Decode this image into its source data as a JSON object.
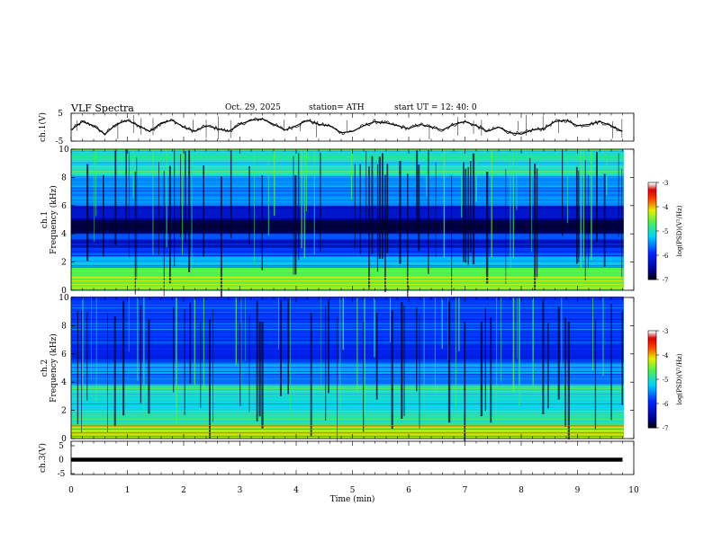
{
  "header": {
    "title": "VLF  Spectra",
    "date": "Oct. 29, 2025",
    "station": "station= ATH",
    "start_time": "start  UT  =   12: 40: 0"
  },
  "chart_data": [
    {
      "type": "line",
      "panel": "ch1-waveform",
      "ylabel": "ch.1(V)",
      "ylim": [
        -5,
        5
      ],
      "yticks": [
        5,
        -5
      ],
      "x_range": [
        0,
        9.8
      ],
      "x": [
        0,
        0.2,
        0.4,
        0.6,
        0.8,
        1.0,
        1.2,
        1.4,
        1.6,
        1.8,
        2.0,
        2.2,
        2.4,
        2.6,
        2.8,
        3.0,
        3.2,
        3.4,
        3.6,
        3.8,
        4.0,
        4.2,
        4.4,
        4.6,
        4.8,
        5.0,
        5.2,
        5.4,
        5.6,
        5.8,
        6.0,
        6.2,
        6.4,
        6.6,
        6.8,
        7.0,
        7.2,
        7.4,
        7.6,
        7.8,
        8.0,
        8.2,
        8.4,
        8.6,
        8.8,
        9.0,
        9.2,
        9.4,
        9.6,
        9.8
      ],
      "values": [
        -1,
        2,
        0.5,
        -2.5,
        1,
        2.5,
        0.5,
        -1.5,
        1.5,
        2.5,
        0,
        -1.5,
        0.5,
        -0.5,
        -1.5,
        1,
        2.5,
        3,
        1,
        -1,
        0.5,
        2.5,
        1,
        0.5,
        -2,
        -1.5,
        0.5,
        2,
        1.5,
        0.5,
        -0.5,
        1,
        0,
        -1,
        1,
        2,
        0.5,
        -1.5,
        0,
        -2,
        -2.5,
        -1,
        -0.5,
        2,
        2.5,
        0.5,
        1,
        2,
        0.5,
        -1.5
      ]
    },
    {
      "type": "heatmap",
      "panel": "ch1-spectrogram",
      "ylabel": "ch.1\nFrequency (kHz)",
      "ylim": [
        0,
        10
      ],
      "yticks": [
        0,
        2,
        4,
        6,
        8,
        10
      ],
      "colorbar": {
        "label": "log(PSD)(V²/Hz)",
        "range": [
          -7,
          -3
        ],
        "ticks": [
          -3,
          -4,
          -5,
          -6,
          -7
        ]
      },
      "bands": [
        {
          "from": 0,
          "to": 1.6,
          "level": -4.6
        },
        {
          "from": 1.6,
          "to": 2.4,
          "level": -5.3
        },
        {
          "from": 2.4,
          "to": 3.0,
          "level": -5.8
        },
        {
          "from": 3.0,
          "to": 3.6,
          "level": -6.3
        },
        {
          "from": 3.6,
          "to": 4.0,
          "level": -5.7
        },
        {
          "from": 4.0,
          "to": 5.0,
          "level": -6.8
        },
        {
          "from": 5.0,
          "to": 6.0,
          "level": -6.2
        },
        {
          "from": 6.0,
          "to": 8.0,
          "level": -5.5
        },
        {
          "from": 8.0,
          "to": 10.0,
          "level": -5.0
        }
      ]
    },
    {
      "type": "heatmap",
      "panel": "ch2-spectrogram",
      "ylabel": "ch.2\nFrequency (kHz)",
      "ylim": [
        0,
        10
      ],
      "yticks": [
        0,
        2,
        4,
        6,
        8,
        10
      ],
      "colorbar": {
        "label": "log(PSD)(V²/Hz)",
        "range": [
          -7,
          -3
        ],
        "ticks": [
          -3,
          -4,
          -5,
          -6,
          -7
        ]
      },
      "bands": [
        {
          "from": 0,
          "to": 1.0,
          "level": -4.3
        },
        {
          "from": 1.0,
          "to": 2.0,
          "level": -4.9
        },
        {
          "from": 2.0,
          "to": 3.0,
          "level": -5.1
        },
        {
          "from": 3.0,
          "to": 3.8,
          "level": -4.9
        },
        {
          "from": 3.8,
          "to": 4.6,
          "level": -5.6
        },
        {
          "from": 4.6,
          "to": 5.4,
          "level": -5.4
        },
        {
          "from": 5.4,
          "to": 7.0,
          "level": -6.0
        },
        {
          "from": 7.0,
          "to": 10.0,
          "level": -5.8
        }
      ]
    },
    {
      "type": "line",
      "panel": "ch3-waveform",
      "ylabel": "ch.3(V)",
      "ylim": [
        -5,
        5
      ],
      "yticks": [
        5,
        0,
        -5
      ],
      "x": [
        0,
        9.8
      ],
      "values": [
        0,
        0
      ]
    }
  ],
  "axis": {
    "xlabel": "Time  (min)",
    "xticks": [
      "0",
      "1",
      "2",
      "3",
      "4",
      "5",
      "6",
      "7",
      "8",
      "9",
      "10"
    ],
    "ch1_ylabel": "ch.1(V)",
    "ch1_yticks": [
      "5",
      "-5"
    ],
    "spec1_ylabel_a": "ch.1",
    "spec1_ylabel_b": "Frequency  (kHz)",
    "spec2_ylabel_a": "ch.2",
    "spec2_ylabel_b": "Frequency  (kHz)",
    "spec_yticks": [
      "0",
      "2",
      "4",
      "6",
      "8",
      "10"
    ],
    "ch3_ylabel": "ch.3(V)",
    "ch3_yticks": [
      "5",
      "0",
      "-5"
    ],
    "colorbar_label": "log(PSD)(V²/Hz)",
    "colorbar_ticks": [
      "-3",
      "-4",
      "-5",
      "-6",
      "-7"
    ]
  }
}
